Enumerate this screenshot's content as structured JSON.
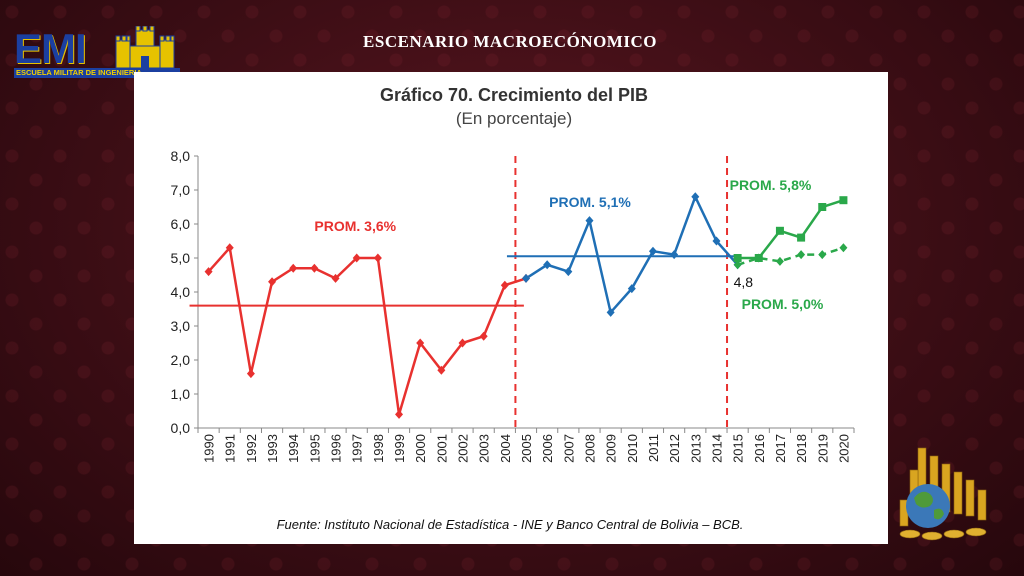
{
  "header": {
    "slide_title": "ESCENARIO MACROECÓNOMICO",
    "logo_text": "EMI",
    "logo_band": "ESCUELA MILITAR DE INGENIERIA"
  },
  "chart_data": {
    "type": "line",
    "title": "Gráfico 70. Crecimiento del PIB",
    "subtitle": "(En porcentaje)",
    "source": "Fuente: Instituto Nacional de Estadística - INE y Banco Central de Bolivia – BCB.",
    "categories": [
      "1990",
      "1991",
      "1992",
      "1993",
      "1994",
      "1995",
      "1996",
      "1997",
      "1998",
      "1999",
      "2000",
      "2001",
      "2002",
      "2003",
      "2004",
      "2005",
      "2006",
      "2007",
      "2008",
      "2009",
      "2010",
      "2011",
      "2012",
      "2013",
      "2014",
      "2015",
      "2016",
      "2017",
      "2018",
      "2019",
      "2020"
    ],
    "y_ticks": [
      "0,0",
      "1,0",
      "2,0",
      "3,0",
      "4,0",
      "5,0",
      "6,0",
      "7,0",
      "8,0"
    ],
    "ylim": [
      0,
      8
    ],
    "series": [
      {
        "color": "#e8312f",
        "marker": "diamond",
        "x": [
          "1990",
          "1991",
          "1992",
          "1993",
          "1994",
          "1995",
          "1996",
          "1997",
          "1998",
          "1999",
          "2000",
          "2001",
          "2002",
          "2003",
          "2004",
          "2005"
        ],
        "values": [
          4.6,
          5.3,
          1.6,
          4.3,
          4.7,
          4.7,
          4.4,
          5.0,
          5.0,
          0.4,
          2.5,
          1.7,
          2.5,
          2.7,
          4.2,
          4.4
        ]
      },
      {
        "color": "#1f6fb5",
        "marker": "diamond",
        "x": [
          "2005",
          "2006",
          "2007",
          "2008",
          "2009",
          "2010",
          "2011",
          "2012",
          "2013",
          "2014",
          "2015"
        ],
        "values": [
          4.4,
          4.8,
          4.6,
          6.1,
          3.4,
          4.1,
          5.2,
          5.1,
          6.8,
          5.5,
          4.8
        ]
      },
      {
        "color": "#2aa84a",
        "marker": "square",
        "dash": false,
        "x": [
          "2015",
          "2016",
          "2017",
          "2018",
          "2019",
          "2020"
        ],
        "values": [
          5.0,
          5.0,
          5.8,
          5.6,
          6.5,
          6.7
        ]
      },
      {
        "color": "#2aa84a",
        "marker": "diamond",
        "dash": true,
        "x": [
          "2015",
          "2016",
          "2017",
          "2018",
          "2019",
          "2020"
        ],
        "values": [
          4.8,
          5.0,
          4.9,
          5.1,
          5.1,
          5.3
        ]
      }
    ],
    "averages": [
      {
        "label": "PROM. 3,6%",
        "value": 3.6,
        "from": "1990",
        "to": "2005",
        "color": "#e8312f"
      },
      {
        "label": "PROM. 5,1%",
        "value": 5.05,
        "from": "2005",
        "to": "2015",
        "color": "#1f6fb5"
      },
      {
        "label": "PROM. 5,8%",
        "color": "#2aa84a"
      },
      {
        "label": "PROM. 5,0%",
        "color": "#2aa84a"
      }
    ],
    "dividers": [
      "2005",
      "2015"
    ],
    "annotations": [
      {
        "text": "4,8",
        "x": "2015",
        "value": 4.8
      }
    ]
  }
}
